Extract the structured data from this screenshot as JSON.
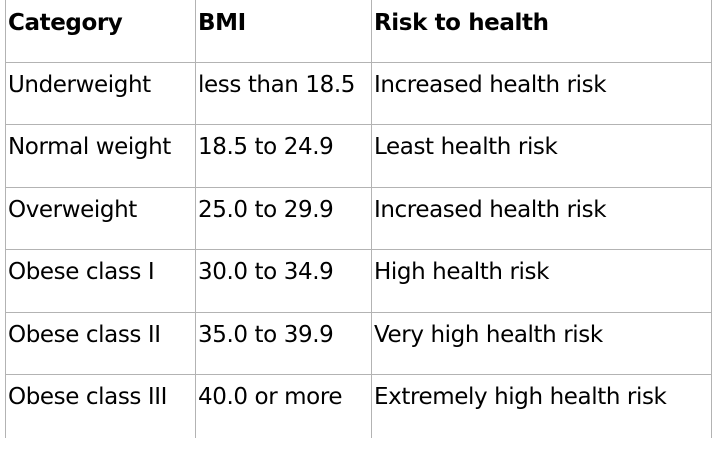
{
  "table": {
    "headers": [
      "Category",
      "BMI",
      "Risk to health"
    ],
    "rows": [
      [
        "Underweight",
        "less than 18.5",
        "Increased health risk"
      ],
      [
        "Normal weight",
        "18.5 to 24.9",
        "Least health risk"
      ],
      [
        "Overweight",
        "25.0 to 29.9",
        "Increased health risk"
      ],
      [
        "Obese class I",
        "30.0 to 34.9",
        "High health risk"
      ],
      [
        "Obese class II",
        "35.0 to 39.9",
        "Very high health risk"
      ],
      [
        "Obese class III",
        "40.0 or more",
        "Extremely high health risk"
      ]
    ]
  }
}
